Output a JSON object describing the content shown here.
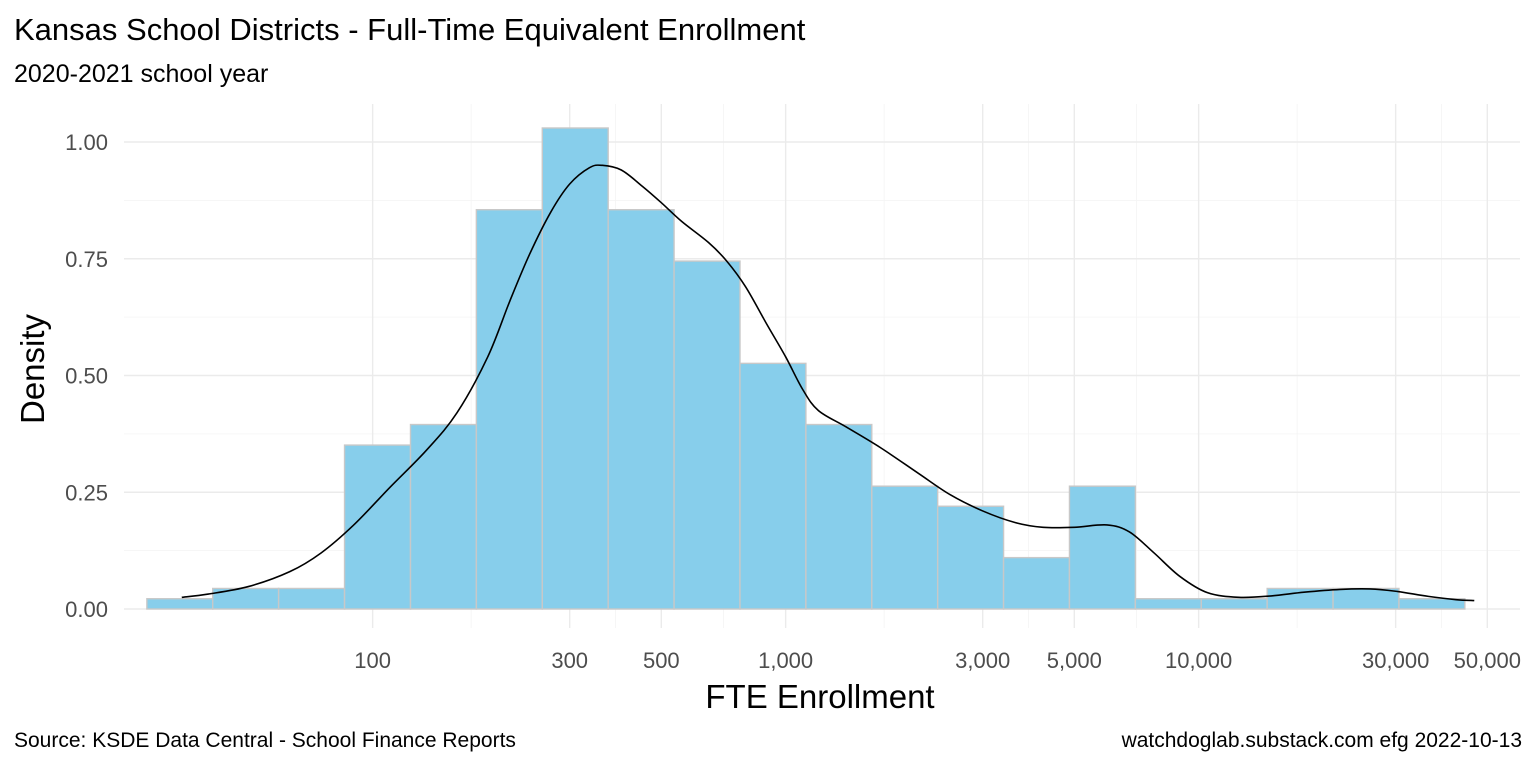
{
  "title": "Kansas School Districts - Full-Time Equivalent Enrollment",
  "subtitle": "2020-2021 school year",
  "caption_left": "Source:  KSDE Data Central - School Finance Reports",
  "caption_right": "watchdoglab.substack.com  efg 2022-10-13",
  "chart_data": {
    "type": "histogram",
    "xlabel": "FTE Enrollment",
    "ylabel": "Density",
    "x_scale": "log10",
    "xlim": [
      25,
      60000
    ],
    "ylim": [
      0,
      1.07
    ],
    "x_ticks": [
      {
        "value": 100,
        "label": "100"
      },
      {
        "value": 300,
        "label": "300"
      },
      {
        "value": 500,
        "label": "500"
      },
      {
        "value": 1000,
        "label": "1,000"
      },
      {
        "value": 3000,
        "label": "3,000"
      },
      {
        "value": 5000,
        "label": "5,000"
      },
      {
        "value": 10000,
        "label": "10,000"
      },
      {
        "value": 30000,
        "label": "30,000"
      },
      {
        "value": 50000,
        "label": "50,000"
      }
    ],
    "y_ticks": [
      {
        "value": 0,
        "label": "0.00"
      },
      {
        "value": 0.25,
        "label": "0.25"
      },
      {
        "value": 0.5,
        "label": "0.50"
      },
      {
        "value": 0.75,
        "label": "0.75"
      },
      {
        "value": 1.0,
        "label": "1.00"
      }
    ],
    "grid": true,
    "bar_fill": "#87CEEB",
    "bar_stroke": "#C8C8C8",
    "curve_color": "#000000",
    "bins": [
      {
        "x0": 28.4,
        "x1": 41.0,
        "density": 0.022
      },
      {
        "x0": 41.0,
        "x1": 59.2,
        "density": 0.044
      },
      {
        "x0": 59.2,
        "x1": 85.5,
        "density": 0.044
      },
      {
        "x0": 85.5,
        "x1": 123.5,
        "density": 0.351
      },
      {
        "x0": 123.5,
        "x1": 178.3,
        "density": 0.395
      },
      {
        "x0": 178.3,
        "x1": 257.5,
        "density": 0.855
      },
      {
        "x0": 257.5,
        "x1": 371.8,
        "density": 1.03
      },
      {
        "x0": 371.8,
        "x1": 536.9,
        "density": 0.855
      },
      {
        "x0": 536.9,
        "x1": 775.3,
        "density": 0.745
      },
      {
        "x0": 775.3,
        "x1": 1119.6,
        "density": 0.526
      },
      {
        "x0": 1119.6,
        "x1": 1616.6,
        "density": 0.395
      },
      {
        "x0": 1616.6,
        "x1": 2334.2,
        "density": 0.263
      },
      {
        "x0": 2334.2,
        "x1": 3370.6,
        "density": 0.22
      },
      {
        "x0": 3370.6,
        "x1": 4867.0,
        "density": 0.11
      },
      {
        "x0": 4867.0,
        "x1": 7028.0,
        "density": 0.263
      },
      {
        "x0": 7028.0,
        "x1": 10148,
        "density": 0.022
      },
      {
        "x0": 10148,
        "x1": 14654,
        "density": 0.022
      },
      {
        "x0": 14654,
        "x1": 21160,
        "density": 0.044
      },
      {
        "x0": 21160,
        "x1": 30554,
        "density": 0.044
      },
      {
        "x0": 30554,
        "x1": 44120,
        "density": 0.022
      }
    ],
    "density_curve": [
      [
        34.5,
        0.025
      ],
      [
        40,
        0.032
      ],
      [
        50,
        0.048
      ],
      [
        63,
        0.08
      ],
      [
        75,
        0.12
      ],
      [
        90,
        0.18
      ],
      [
        110,
        0.26
      ],
      [
        135,
        0.34
      ],
      [
        160,
        0.42
      ],
      [
        190,
        0.54
      ],
      [
        215,
        0.66
      ],
      [
        240,
        0.76
      ],
      [
        270,
        0.85
      ],
      [
        300,
        0.91
      ],
      [
        335,
        0.945
      ],
      [
        360,
        0.95
      ],
      [
        400,
        0.94
      ],
      [
        450,
        0.905
      ],
      [
        500,
        0.87
      ],
      [
        560,
        0.83
      ],
      [
        650,
        0.785
      ],
      [
        720,
        0.745
      ],
      [
        800,
        0.69
      ],
      [
        900,
        0.61
      ],
      [
        1000,
        0.54
      ],
      [
        1100,
        0.47
      ],
      [
        1200,
        0.425
      ],
      [
        1400,
        0.39
      ],
      [
        1700,
        0.345
      ],
      [
        2100,
        0.29
      ],
      [
        2500,
        0.245
      ],
      [
        3000,
        0.21
      ],
      [
        3600,
        0.185
      ],
      [
        4200,
        0.175
      ],
      [
        5000,
        0.175
      ],
      [
        6000,
        0.18
      ],
      [
        6800,
        0.165
      ],
      [
        7800,
        0.12
      ],
      [
        9000,
        0.07
      ],
      [
        10500,
        0.035
      ],
      [
        12500,
        0.025
      ],
      [
        15000,
        0.028
      ],
      [
        18000,
        0.036
      ],
      [
        22000,
        0.042
      ],
      [
        26000,
        0.043
      ],
      [
        30000,
        0.038
      ],
      [
        36000,
        0.027
      ],
      [
        42000,
        0.02
      ],
      [
        46500,
        0.018
      ]
    ]
  }
}
